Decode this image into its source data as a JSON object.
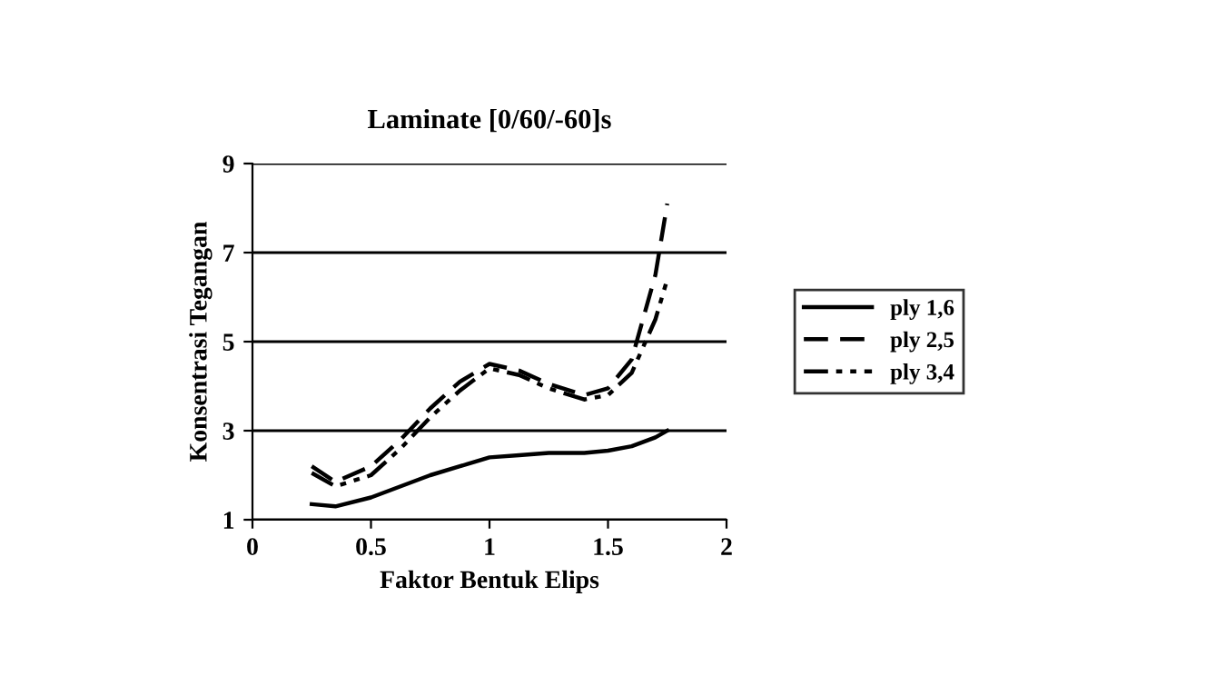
{
  "chart_data": {
    "type": "line",
    "title": "Laminate [0/60/-60]s",
    "xlabel": "Faktor Bentuk Elips",
    "ylabel": "Konsentrasi Tegangan",
    "x": [
      0.25,
      0.35,
      0.5,
      0.625,
      0.75,
      0.875,
      1.0,
      1.125,
      1.25,
      1.4,
      1.5,
      1.6,
      1.7,
      1.75
    ],
    "series": [
      {
        "name": "ply 1,6",
        "color": "#000000",
        "line_style": "solid",
        "values": [
          1.35,
          1.3,
          1.5,
          1.75,
          2.0,
          2.2,
          2.4,
          2.45,
          2.5,
          2.5,
          2.55,
          2.65,
          2.85,
          3.0
        ]
      },
      {
        "name": "ply 2,5",
        "color": "#000000",
        "line_style": "dashed",
        "values": [
          2.2,
          1.85,
          2.2,
          2.8,
          3.5,
          4.1,
          4.5,
          4.35,
          4.05,
          3.8,
          3.95,
          4.6,
          6.5,
          8.1
        ]
      },
      {
        "name": "ply 3,4",
        "color": "#000000",
        "line_style": "dashdot",
        "values": [
          2.05,
          1.75,
          2.0,
          2.6,
          3.3,
          3.9,
          4.4,
          4.25,
          3.95,
          3.7,
          3.8,
          4.3,
          5.5,
          6.4
        ]
      }
    ],
    "xlim": [
      0,
      2
    ],
    "xticks": [
      0,
      0.5,
      1,
      1.5,
      2
    ],
    "ylim": [
      1,
      9
    ],
    "yticks": [
      1,
      3,
      5,
      7,
      9
    ],
    "grid": "y",
    "legend": "right",
    "marker": "none"
  }
}
